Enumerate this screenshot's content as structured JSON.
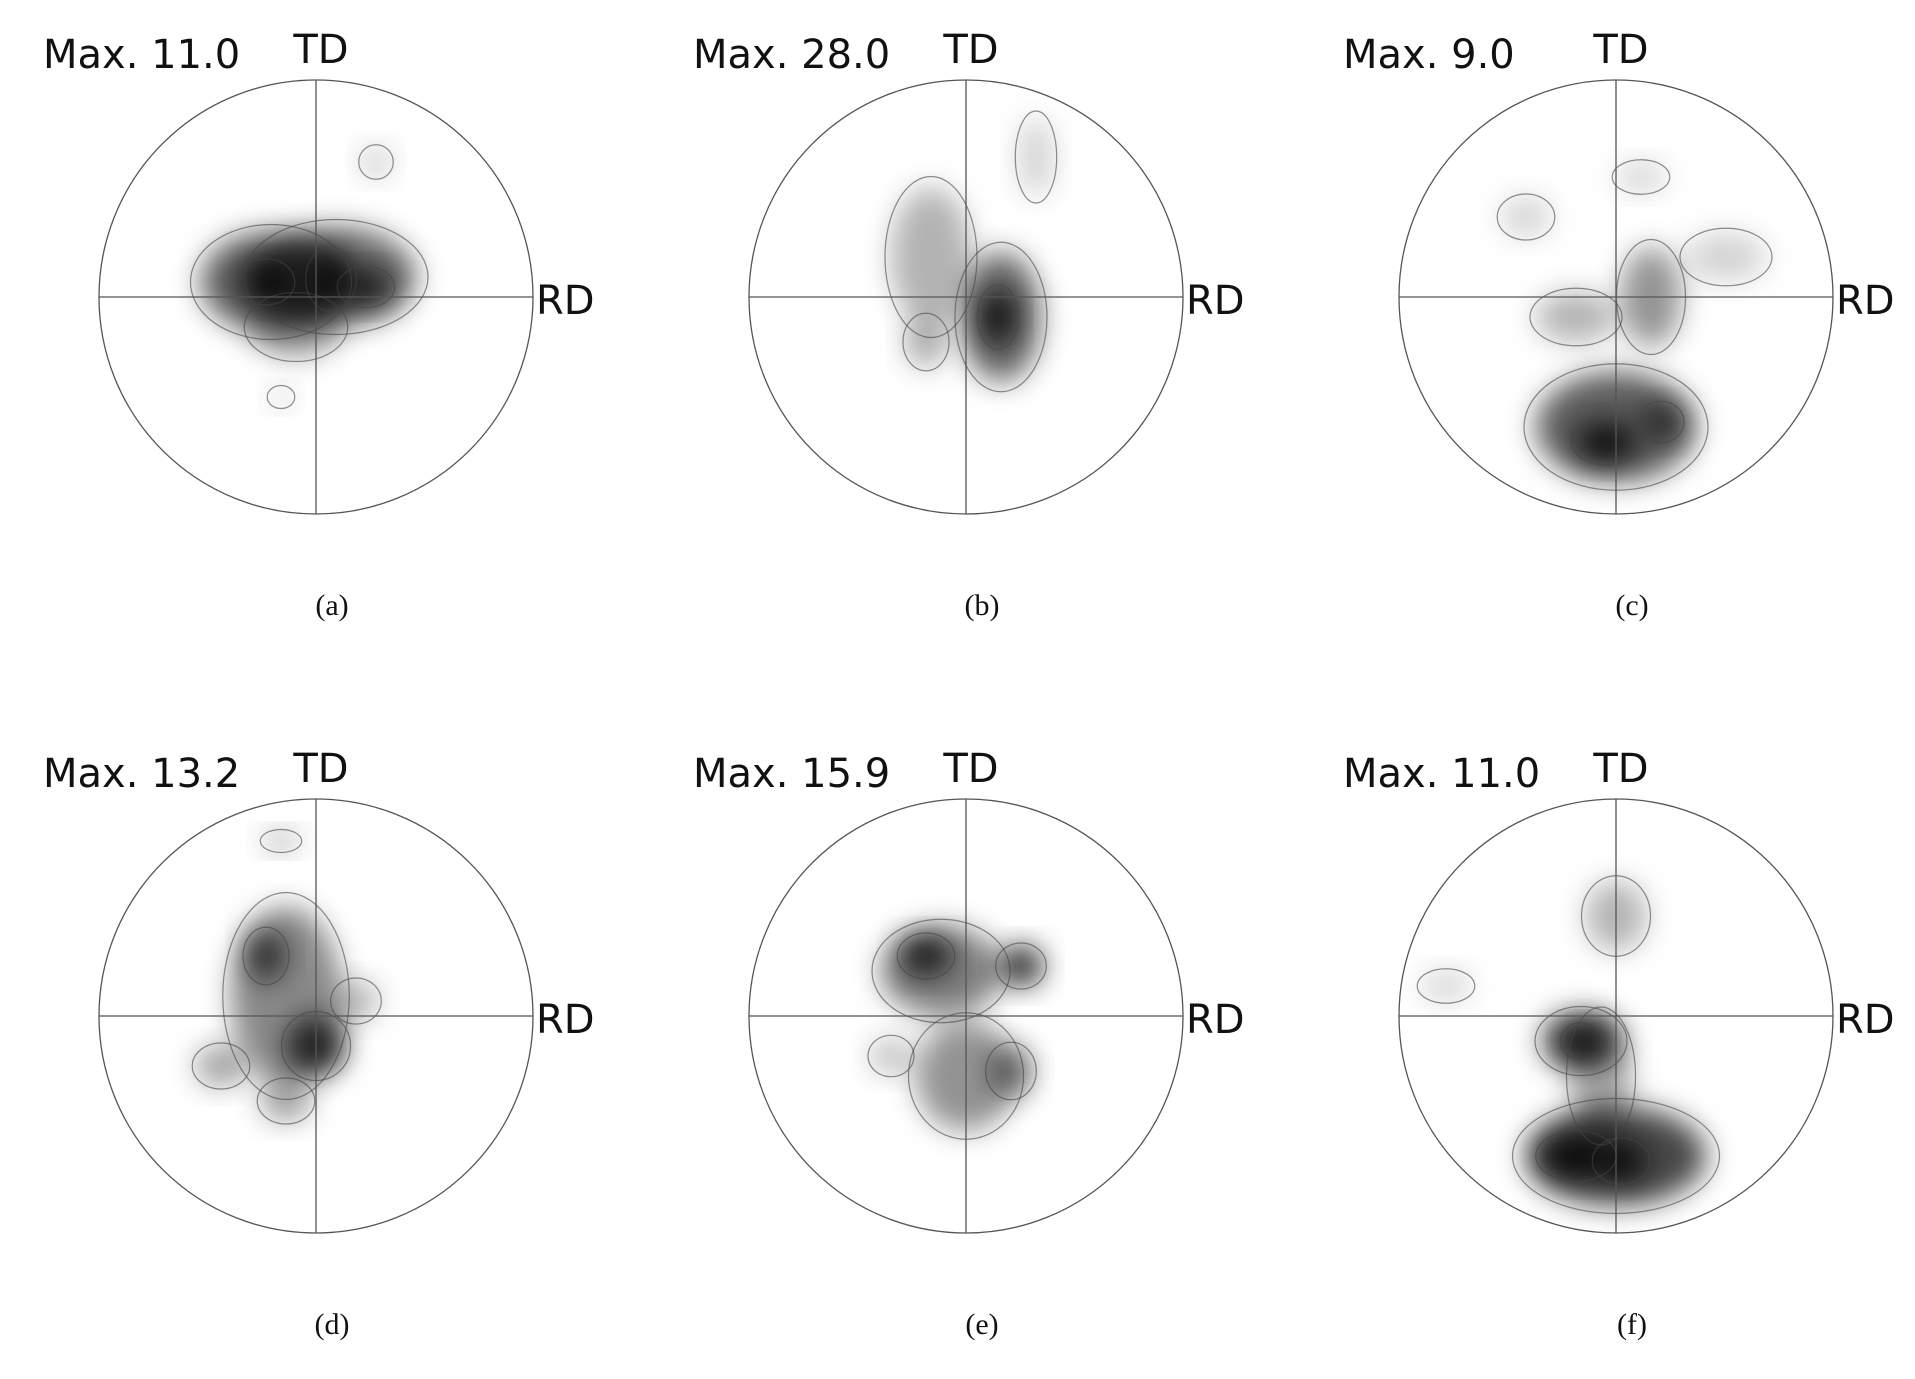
{
  "panels": [
    {
      "max": "Max. 11.0",
      "td": "TD",
      "rd": "RD",
      "caption": "(a)"
    },
    {
      "max": "Max. 28.0",
      "td": "TD",
      "rd": "RD",
      "caption": "(b)"
    },
    {
      "max": "Max. 9.0",
      "td": "TD",
      "rd": "RD",
      "caption": "(c)"
    },
    {
      "max": "Max. 13.2",
      "td": "TD",
      "rd": "RD",
      "caption": "(d)"
    },
    {
      "max": "Max. 15.9",
      "td": "TD",
      "rd": "RD",
      "caption": "(e)"
    },
    {
      "max": "Max. 11.0",
      "td": "TD",
      "rd": "RD",
      "caption": "(f)"
    }
  ]
}
